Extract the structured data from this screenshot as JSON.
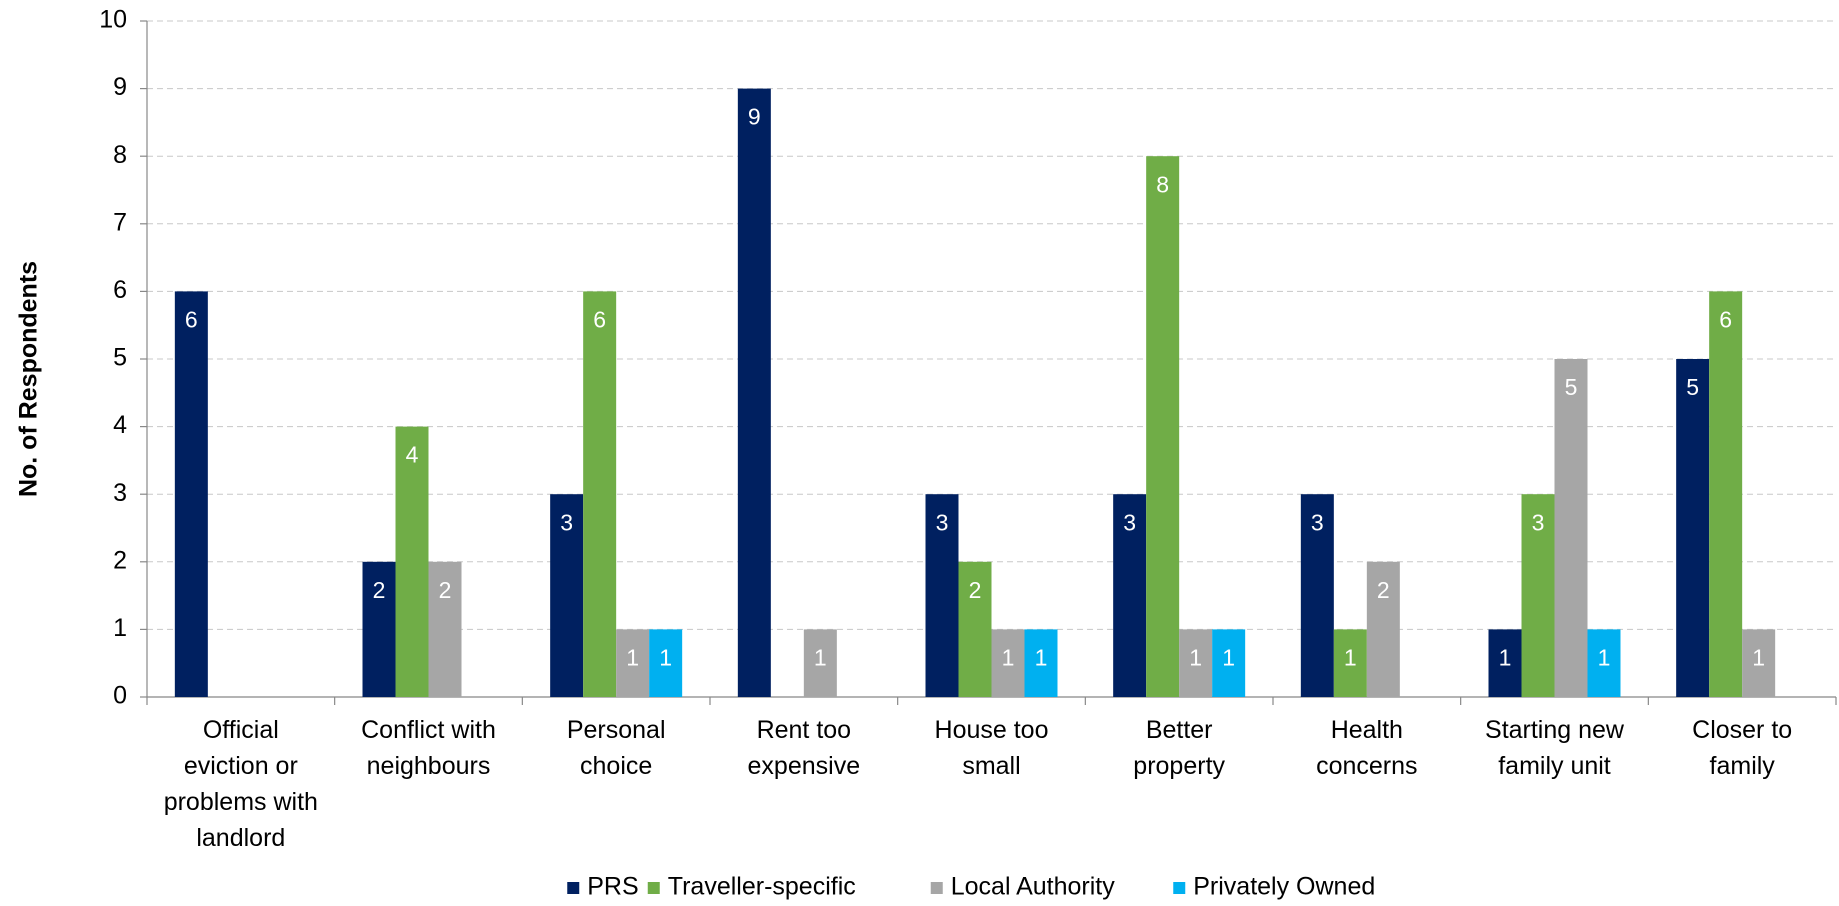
{
  "chart_data": {
    "type": "bar",
    "y_label": "No. of Respondents",
    "categories": [
      "Official eviction or problems with landlord",
      "Conflict with neighbours",
      "Personal choice",
      "Rent too expensive",
      "House too small",
      "Better property",
      "Health concerns",
      "Starting new family unit",
      "Closer to family"
    ],
    "series": [
      {
        "name": "PRS",
        "color": "#002060",
        "values": [
          6,
          2,
          3,
          9,
          3,
          3,
          3,
          1,
          5
        ]
      },
      {
        "name": "Traveller-specific",
        "color": "#70ad47",
        "values": [
          0,
          4,
          6,
          0,
          2,
          8,
          1,
          3,
          6
        ]
      },
      {
        "name": "Local Authority",
        "color": "#a6a6a6",
        "values": [
          0,
          2,
          1,
          1,
          1,
          1,
          2,
          5,
          1
        ]
      },
      {
        "name": "Privately Owned",
        "color": "#00b0f0",
        "values": [
          0,
          0,
          1,
          0,
          1,
          1,
          0,
          1,
          0
        ]
      }
    ],
    "ylim": [
      0,
      10
    ],
    "yticks": [
      0,
      1,
      2,
      3,
      4,
      5,
      6,
      7,
      8,
      9,
      10
    ],
    "grid": true,
    "legend": "bottom"
  }
}
